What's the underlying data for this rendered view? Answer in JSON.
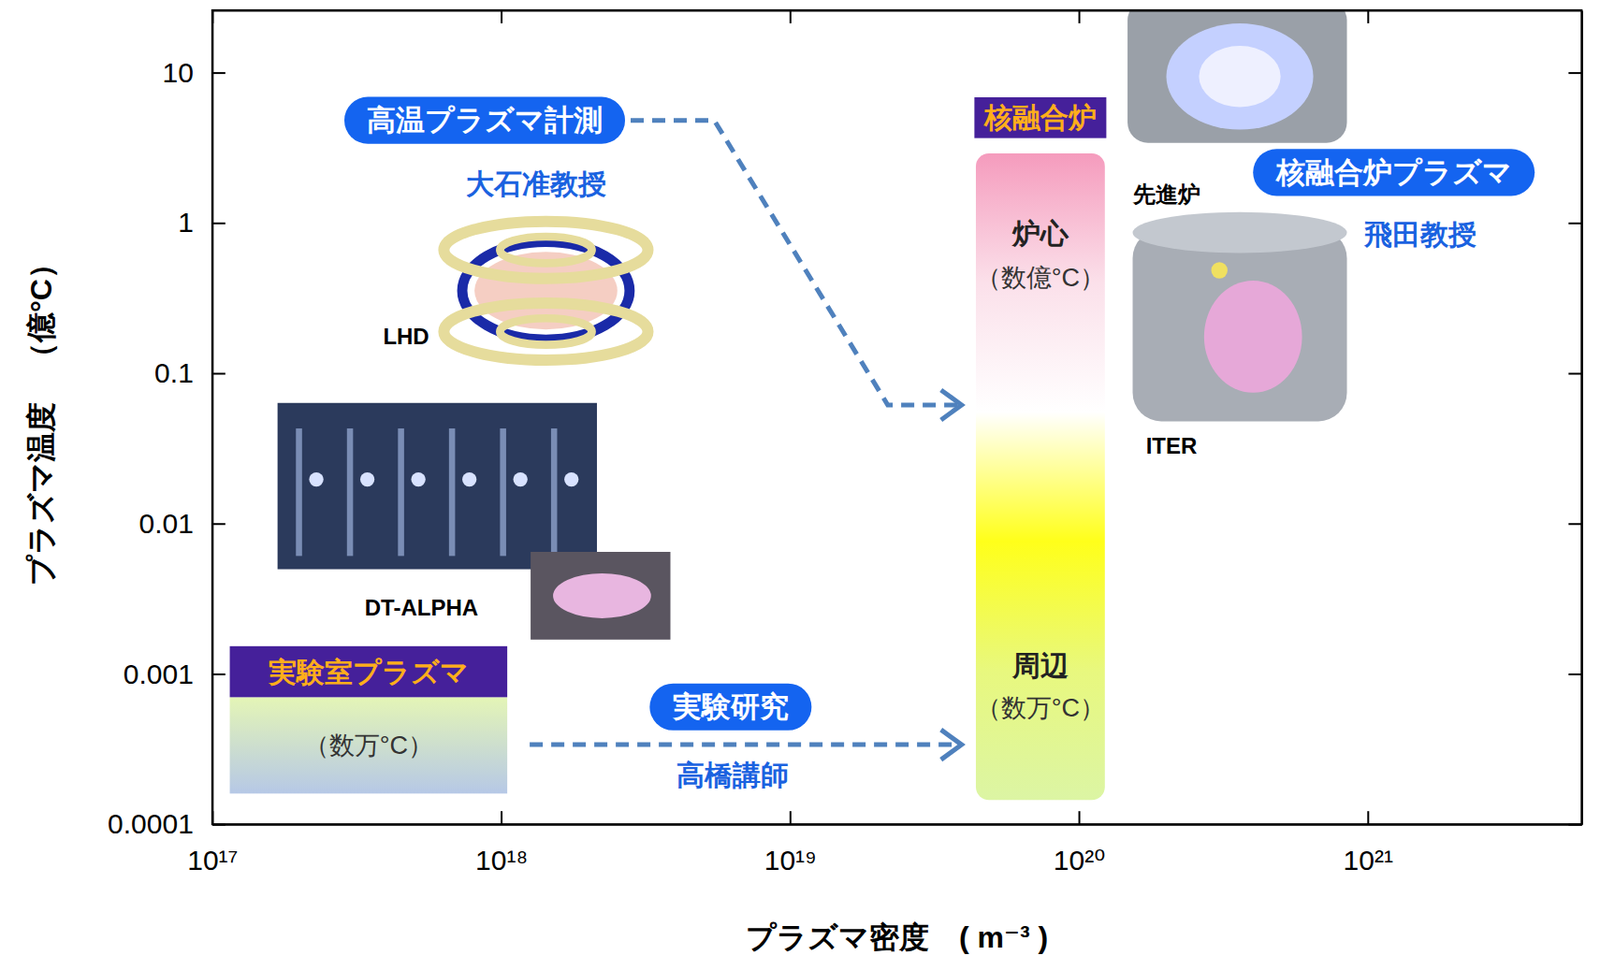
{
  "chart_data": {
    "type": "region_map",
    "x_label": "プラズマ密度　( m⁻³ )",
    "y_label": "プラズマ温度　（億°C）",
    "log": true,
    "xlim": [
      1e+17,
      5.5e+21
    ],
    "ylim": [
      0.0001,
      26
    ],
    "xticks": [
      {
        "value": 1e+17,
        "label": "10¹⁷"
      },
      {
        "value": 1e+18,
        "label": "10¹⁸"
      },
      {
        "value": 1e+19,
        "label": "10¹⁹"
      },
      {
        "value": 1e+20,
        "label": "10²⁰"
      },
      {
        "value": 1e+21,
        "label": "10²¹"
      }
    ],
    "yticks": [
      0.0001,
      0.001,
      0.01,
      0.1,
      1,
      10
    ],
    "regions": [
      {
        "name": "実験室プラズマ",
        "note": "（数万°C）",
        "x": [
          1.15e+17,
          1.05e+18
        ],
        "y": [
          0.00016,
          0.0007
        ],
        "colors": [
          "#e4f5b6",
          "#b6c8e6"
        ]
      },
      {
        "name": "核融合炉",
        "x": [
          4.4e+19,
          1.23e+20
        ],
        "y": [
          0.000145,
          2.9
        ],
        "colors": [
          "#f59bbd",
          "#fbe0ea",
          "#ffffff",
          "#ffff1a",
          "#e8f87e",
          "#dcf5a4"
        ],
        "zones": [
          {
            "name": "炉心",
            "note": "（数億°C）"
          },
          {
            "name": "周辺",
            "note": "（数万°C）"
          }
        ]
      }
    ],
    "annotations": [
      {
        "label": "高温プラズマ計測",
        "person": "大石准教授"
      },
      {
        "label": "実験研究",
        "person": "高橋講師"
      },
      {
        "label": "核融合炉プラズマ",
        "person": "飛田教授"
      }
    ],
    "device_labels": [
      "LHD",
      "DT-ALPHA",
      "先進炉",
      "ITER"
    ]
  }
}
